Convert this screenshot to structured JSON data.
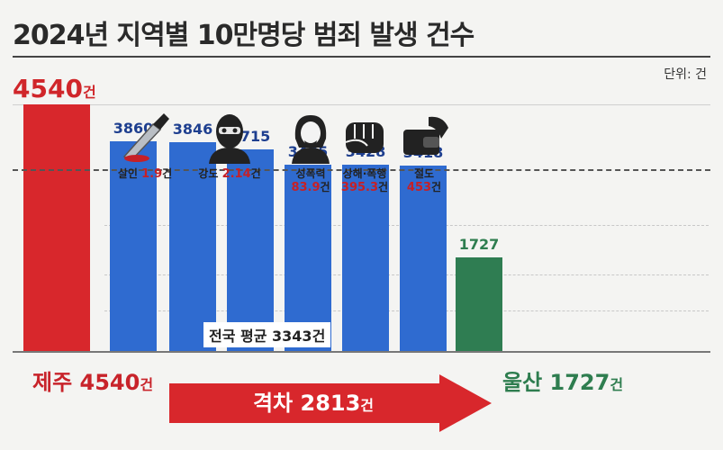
{
  "title": "2024년 지역별 10만명당 범죄 발생 건수",
  "unit_label": "단위: 건",
  "colors": {
    "highest": "#d8272c",
    "regular": "#2f6bd0",
    "lowest": "#2f7d52",
    "text_red": "#c8232a",
    "text_blue": "#1e3f8f"
  },
  "crime_types": [
    {
      "name": "살인",
      "value": "1.9",
      "unit": "건",
      "icon": "knife-icon"
    },
    {
      "name": "강도",
      "value": "2.14",
      "unit": "건",
      "icon": "masked-robber-icon"
    },
    {
      "name": "성폭력",
      "value": "83.9",
      "unit": "건",
      "icon": "distressed-woman-icon"
    },
    {
      "name": "상해·폭행",
      "value": "395.3",
      "unit": "건",
      "icon": "fist-icon"
    },
    {
      "name": "절도",
      "value": "453",
      "unit": "건",
      "icon": "wallet-theft-icon"
    }
  ],
  "chart_data": {
    "type": "bar",
    "title": "2024년 지역별 10만명당 범죄 발생 건수",
    "unit": "건",
    "values": [
      4540,
      3860,
      3846,
      3715,
      3435,
      3428,
      3418,
      1727
    ],
    "value_labels": [
      "4540",
      "3860",
      "3846",
      "3715",
      "3435",
      "3428",
      "3418",
      "1727"
    ],
    "average": {
      "label": "전국 평균",
      "value": "3343",
      "unit": "건"
    },
    "highest": {
      "region": "제주",
      "value": "4540",
      "unit": "건"
    },
    "lowest": {
      "region": "울산",
      "value": "1727",
      "unit": "건"
    },
    "gap": {
      "label": "격차",
      "value": "2813",
      "unit": "건"
    },
    "grid": true
  }
}
